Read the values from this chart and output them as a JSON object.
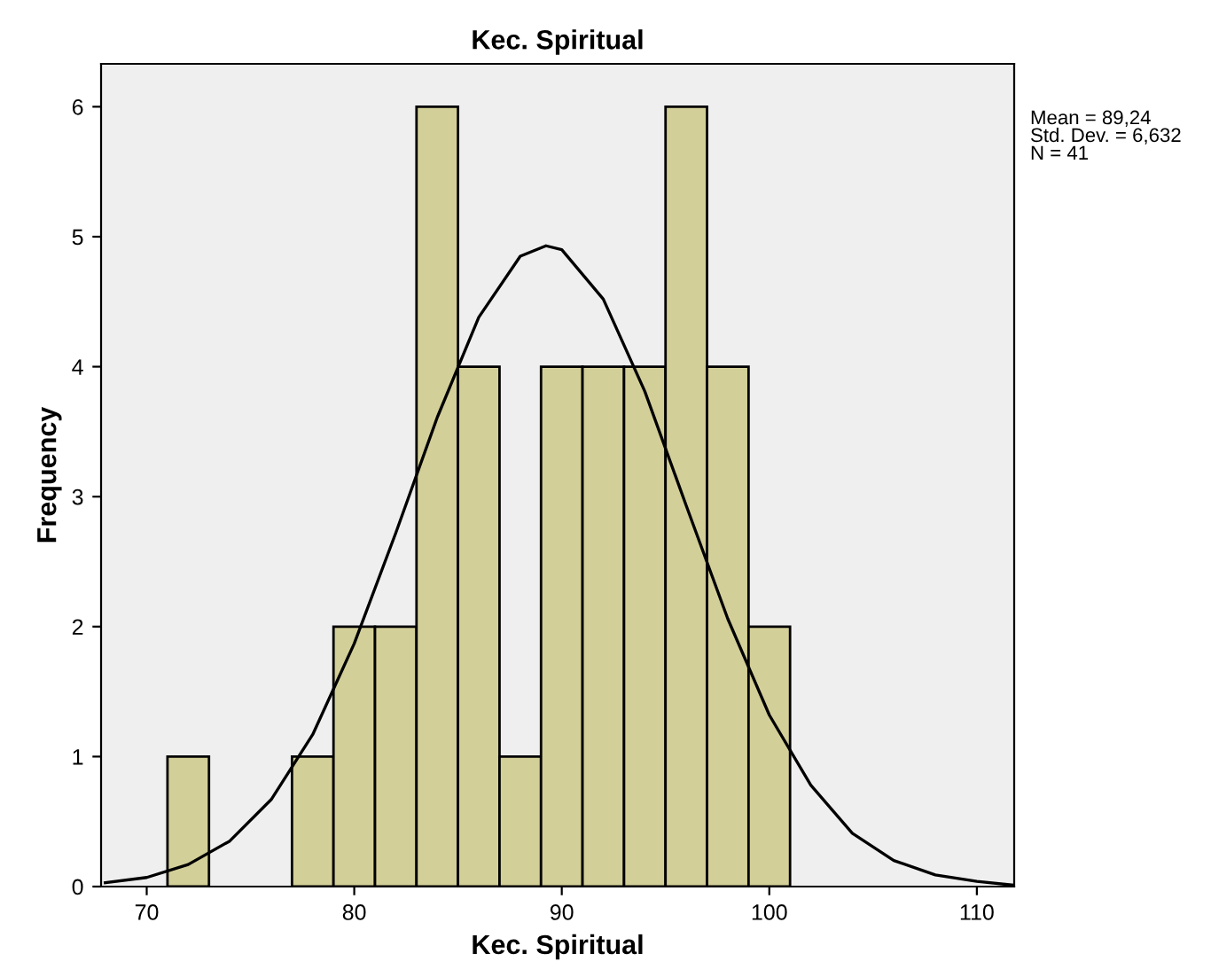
{
  "chart_data": {
    "type": "histogram",
    "title": "Kec. Spiritual",
    "xlabel": "Kec. Spiritual",
    "ylabel": "Frequency",
    "bins": [
      71,
      73,
      75,
      77,
      79,
      81,
      83,
      85,
      87,
      89,
      91,
      93,
      95,
      97,
      99,
      101
    ],
    "values": [
      1,
      0,
      0,
      1,
      2,
      2,
      6,
      4,
      1,
      4,
      4,
      4,
      6,
      4,
      2
    ],
    "color": "#d3cf98",
    "series": [
      {
        "type": "line",
        "color": "#000000",
        "x": [
          68,
          70,
          72,
          74,
          76,
          78,
          80,
          82,
          84,
          86,
          88,
          89.24,
          90,
          92,
          94,
          96,
          98,
          100,
          102,
          104,
          106,
          108,
          110,
          111.8
        ],
        "values": [
          0.03,
          0.07,
          0.17,
          0.35,
          0.67,
          1.17,
          1.87,
          2.72,
          3.61,
          4.38,
          4.85,
          4.93,
          4.9,
          4.52,
          3.81,
          2.93,
          2.06,
          1.32,
          0.78,
          0.41,
          0.2,
          0.09,
          0.04,
          0.01
        ]
      }
    ],
    "xlim": [
      67.8,
      111.8
    ],
    "ylim": [
      0,
      6.33
    ],
    "xticks": [
      70,
      80,
      90,
      100,
      110
    ],
    "yticks": [
      0,
      1,
      2,
      3,
      4,
      5,
      6
    ],
    "annotations": [
      "Mean = 89,24\nStd. Dev. = 6,632\nN = 41"
    ]
  }
}
